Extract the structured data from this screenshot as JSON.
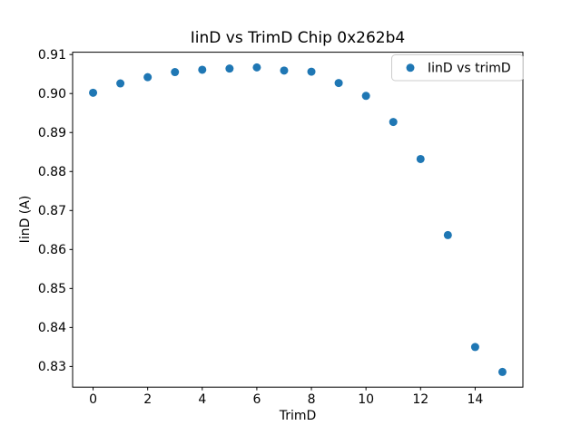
{
  "window": {
    "background": "#ffffff"
  },
  "chart_data": {
    "type": "scatter",
    "title": "IinD vs TrimD Chip 0x262b4",
    "xlabel": "TrimD",
    "ylabel": "IinD (A)",
    "legend": [
      "IinD vs trimD"
    ],
    "legend_position": "upper right",
    "marker_color": "#1f77b4",
    "marker_shape": "circle",
    "grid": false,
    "x": [
      0,
      1,
      2,
      3,
      4,
      5,
      6,
      7,
      8,
      9,
      10,
      11,
      12,
      13,
      14,
      15
    ],
    "y": [
      0.9002,
      0.9026,
      0.9042,
      0.9055,
      0.9061,
      0.9064,
      0.9067,
      0.9059,
      0.9056,
      0.9027,
      0.8994,
      0.8927,
      0.8832,
      0.8637,
      0.835,
      0.8286
    ],
    "x_ticks": [
      0,
      2,
      4,
      6,
      8,
      10,
      12,
      14
    ],
    "y_ticks": [
      0.83,
      0.84,
      0.85,
      0.86,
      0.87,
      0.88,
      0.89,
      0.9,
      0.91
    ],
    "xlim": [
      -0.75,
      15.75
    ],
    "ylim": [
      0.8247,
      0.9106
    ]
  }
}
